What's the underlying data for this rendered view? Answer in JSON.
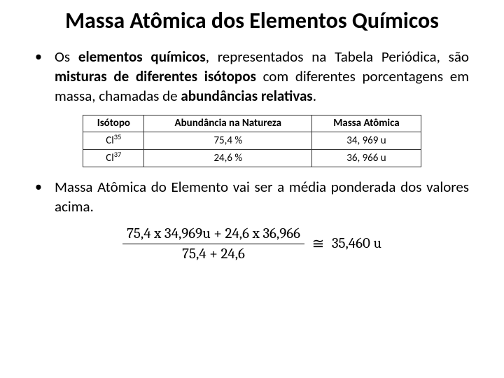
{
  "title": "Massa Atômica dos Elementos Químicos",
  "title_fontsize": 32,
  "para1": {
    "t1": "Os ",
    "b1": "elementos químicos",
    "t2": ", representados na Tabela Periódica, são ",
    "b2": "misturas de diferentes isótopos",
    "t3": " com diferentes porcentagens em massa, chamadas de ",
    "b3": "abundâncias relativas",
    "t4": ".",
    "fontsize": 21
  },
  "table": {
    "header_fontsize": 15,
    "cell_fontsize": 15,
    "columns": [
      "Isótopo",
      "Abundância na Natureza",
      "Massa Atômica"
    ],
    "rows": [
      {
        "isotope_sym": "Cl",
        "isotope_mass": "35",
        "abundance": "75,4 %",
        "mass": "34, 969 u"
      },
      {
        "isotope_sym": "Cl",
        "isotope_mass": "37",
        "abundance": "24,6 %",
        "mass": "36, 966 u"
      }
    ]
  },
  "para2": {
    "text": "Massa Atômica do Elemento vai ser a média ponderada dos valores acima.",
    "fontsize": 21
  },
  "formula": {
    "numerator": "75,4 x 34,969u + 24,6 x 36,966",
    "denominator": "75,4 + 24,6",
    "approx_symbol": "≅",
    "result": "35,460 u",
    "fontsize": 21
  },
  "colors": {
    "text": "#000000",
    "background": "#ffffff",
    "table_border": "#333333"
  }
}
